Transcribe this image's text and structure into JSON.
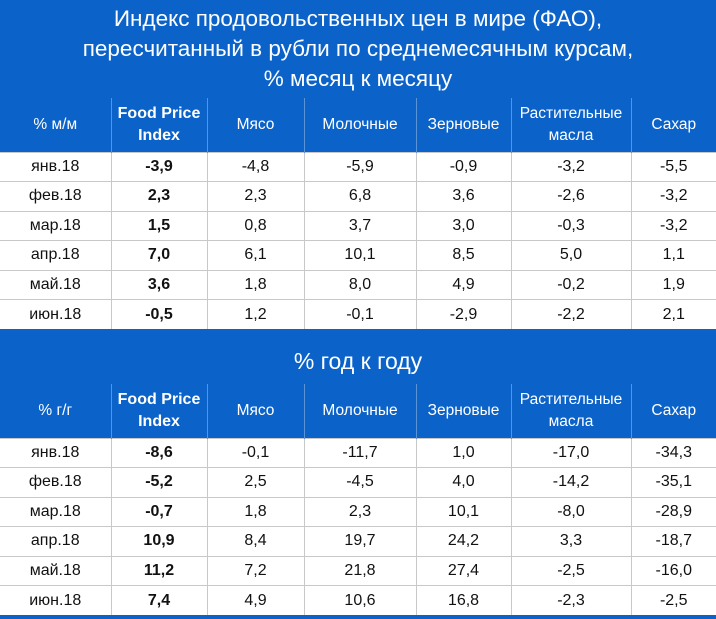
{
  "title_top": {
    "line1": "Индекс продовольственных цен в мире (ФАО),",
    "line2": "пересчитанный в рубли по среднемесячным курсам,",
    "line3": "% месяц к месяцу"
  },
  "title_bottom": "% год к году",
  "colors": {
    "negative": "#c8141e",
    "positive": "#1aa3e0",
    "background": "#0b63c9"
  },
  "table_mom": {
    "headers": [
      "% м/м",
      "Food Price Index",
      "Мясо",
      "Молочные",
      "Зерновые",
      "Растительные масла",
      "Сахар"
    ],
    "rows": [
      [
        "янв.18",
        "-3,9",
        "-4,8",
        "-5,9",
        "-0,9",
        "-3,2",
        "-5,5"
      ],
      [
        "фев.18",
        "2,3",
        "2,3",
        "6,8",
        "3,6",
        "-2,6",
        "-3,2"
      ],
      [
        "мар.18",
        "1,5",
        "0,8",
        "3,7",
        "3,0",
        "-0,3",
        "-3,2"
      ],
      [
        "апр.18",
        "7,0",
        "6,1",
        "10,1",
        "8,5",
        "5,0",
        "1,1"
      ],
      [
        "май.18",
        "3,6",
        "1,8",
        "8,0",
        "4,9",
        "-0,2",
        "1,9"
      ],
      [
        "июн.18",
        "-0,5",
        "1,2",
        "-0,1",
        "-2,9",
        "-2,2",
        "2,1"
      ]
    ]
  },
  "table_yoy": {
    "headers": [
      "% г/г",
      "Food Price Index",
      "Мясо",
      "Молочные",
      "Зерновые",
      "Растительные масла",
      "Сахар"
    ],
    "rows": [
      [
        "янв.18",
        "-8,6",
        "-0,1",
        "-11,7",
        "1,0",
        "-17,0",
        "-34,3"
      ],
      [
        "фев.18",
        "-5,2",
        "2,5",
        "-4,5",
        "4,0",
        "-14,2",
        "-35,1"
      ],
      [
        "мар.18",
        "-0,7",
        "1,8",
        "2,3",
        "10,1",
        "-8,0",
        "-28,9"
      ],
      [
        "апр.18",
        "10,9",
        "8,4",
        "19,7",
        "24,2",
        "3,3",
        "-18,7"
      ],
      [
        "май.18",
        "11,2",
        "7,2",
        "21,8",
        "27,4",
        "-2,5",
        "-16,0"
      ],
      [
        "июн.18",
        "7,4",
        "4,9",
        "10,6",
        "16,8",
        "-2,3",
        "-2,5"
      ]
    ]
  }
}
